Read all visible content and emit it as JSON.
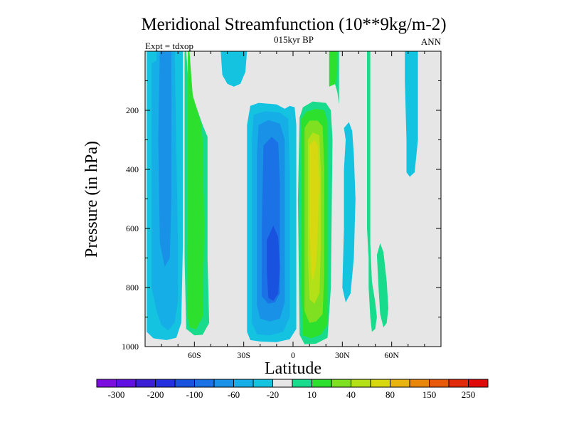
{
  "chart_data": {
    "type": "heatmap",
    "title": "Meridional Streamfunction (10**9kg/m-2)",
    "subtitle": "015kyr BP",
    "left_label": "Expt = tdxop",
    "right_label": "ANN",
    "xlabel": "Latitude",
    "ylabel": "Pressure (in hPa)",
    "xlim": [
      -90,
      90
    ],
    "ylim": [
      1000,
      0
    ],
    "x_ticks": [
      {
        "value": -60,
        "label": "60S"
      },
      {
        "value": -30,
        "label": "30S"
      },
      {
        "value": 0,
        "label": "0"
      },
      {
        "value": 30,
        "label": "30N"
      },
      {
        "value": 60,
        "label": "60N"
      }
    ],
    "y_ticks": [
      {
        "value": 200,
        "label": "200"
      },
      {
        "value": 400,
        "label": "400"
      },
      {
        "value": 600,
        "label": "600"
      },
      {
        "value": 800,
        "label": "800"
      },
      {
        "value": 1000,
        "label": "1000"
      }
    ],
    "colorbar": {
      "colors": [
        "#7a0fe0",
        "#6010e0",
        "#3a1fd6",
        "#2430e0",
        "#1a52e0",
        "#1a72e6",
        "#1891e6",
        "#16aee6",
        "#14c3e0",
        "#e6e6e6",
        "#18dc8c",
        "#2ee02e",
        "#7ee020",
        "#b4e018",
        "#d8d810",
        "#e8b410",
        "#e8860a",
        "#e85a0a",
        "#e02a0a",
        "#e00a0a"
      ],
      "labels": [
        "-300",
        "-200",
        "-100",
        "-60",
        "-20",
        "10",
        "40",
        "80",
        "150",
        "250"
      ]
    },
    "contours": [
      {
        "level": -20,
        "color": "#14c3e0",
        "points": [
          [
            -89,
            -10
          ],
          [
            -89,
            950
          ],
          [
            -85,
            972
          ],
          [
            -77,
            978
          ],
          [
            -71,
            970
          ],
          [
            -68,
            920
          ],
          [
            -67,
            650
          ],
          [
            -67,
            -10
          ]
        ]
      },
      {
        "level": -60,
        "color": "#16aee6",
        "points": [
          [
            -86,
            40
          ],
          [
            -86,
            800
          ],
          [
            -83,
            880
          ],
          [
            -80,
            928
          ],
          [
            -76,
            945
          ],
          [
            -72,
            918
          ],
          [
            -70,
            850
          ],
          [
            -70,
            650
          ],
          [
            -72,
            0
          ]
        ]
      },
      {
        "level": -60,
        "color": "#16aee6",
        "points": [
          [
            -83,
            -10
          ],
          [
            -84,
            350
          ],
          [
            -84,
            700
          ],
          [
            -81,
            780
          ],
          [
            -76,
            810
          ],
          [
            -73,
            720
          ],
          [
            -72,
            500
          ],
          [
            -72,
            -10
          ]
        ]
      },
      {
        "level": -100,
        "color": "#1891e6",
        "points": [
          [
            -81,
            -10
          ],
          [
            -82,
            300
          ],
          [
            -81,
            650
          ],
          [
            -78,
            730
          ],
          [
            -75,
            700
          ],
          [
            -74,
            500
          ],
          [
            -74,
            -10
          ]
        ]
      },
      {
        "level": -100,
        "color": "#1891e6",
        "points": [
          [
            -78,
            240
          ],
          [
            -79,
            380
          ],
          [
            -78,
            480
          ],
          [
            -76,
            440
          ],
          [
            -76,
            280
          ]
        ]
      },
      {
        "level": -20,
        "color": "#14c3e0",
        "points": [
          [
            -44,
            -10
          ],
          [
            -43,
            80
          ],
          [
            -40,
            110
          ],
          [
            -36,
            120
          ],
          [
            -32,
            110
          ],
          [
            -29,
            70
          ],
          [
            -28,
            -10
          ]
        ]
      },
      {
        "level": -20,
        "color": "#14c3e0",
        "points": [
          [
            -26,
            185
          ],
          [
            -21,
            175
          ],
          [
            -10,
            180
          ],
          [
            -5,
            195
          ],
          [
            -2,
            185
          ],
          [
            1,
            190
          ],
          [
            2,
            250
          ],
          [
            2,
            940
          ],
          [
            -2,
            975
          ],
          [
            -10,
            985
          ],
          [
            -20,
            983
          ],
          [
            -26,
            978
          ],
          [
            -28,
            950
          ],
          [
            -28,
            250
          ]
        ]
      },
      {
        "level": -60,
        "color": "#16aee6",
        "points": [
          [
            -24,
            215
          ],
          [
            -17,
            203
          ],
          [
            -8,
            208
          ],
          [
            -3,
            228
          ],
          [
            -2,
            400
          ],
          [
            -2,
            900
          ],
          [
            -6,
            950
          ],
          [
            -14,
            962
          ],
          [
            -22,
            958
          ],
          [
            -25,
            920
          ],
          [
            -25,
            300
          ]
        ]
      },
      {
        "level": -100,
        "color": "#1891e6",
        "points": [
          [
            -21,
            250
          ],
          [
            -15,
            233
          ],
          [
            -8,
            245
          ],
          [
            -5,
            300
          ],
          [
            -5,
            600
          ],
          [
            -5,
            850
          ],
          [
            -8,
            905
          ],
          [
            -14,
            915
          ],
          [
            -20,
            905
          ],
          [
            -22,
            860
          ],
          [
            -22,
            350
          ]
        ]
      },
      {
        "level": -100,
        "color": "#1a72e6",
        "points": [
          [
            -18,
            320
          ],
          [
            -13,
            290
          ],
          [
            -9,
            310
          ],
          [
            -8,
            450
          ],
          [
            -8,
            650
          ],
          [
            -8,
            820
          ],
          [
            -11,
            850
          ],
          [
            -15,
            855
          ],
          [
            -19,
            830
          ],
          [
            -19,
            600
          ]
        ]
      },
      {
        "level": -100,
        "color": "#1a52e0",
        "points": [
          [
            -16,
            640
          ],
          [
            -12,
            590
          ],
          [
            -9,
            630
          ],
          [
            -8,
            730
          ],
          [
            -9,
            820
          ],
          [
            -12,
            845
          ],
          [
            -15,
            835
          ],
          [
            -16,
            740
          ]
        ]
      },
      {
        "level": 10,
        "color": "#18dc8c",
        "points": [
          [
            -65,
            -10
          ],
          [
            -64,
            80
          ],
          [
            -60,
            170
          ],
          [
            -55,
            250
          ],
          [
            -52,
            290
          ],
          [
            -52,
            700
          ],
          [
            -51,
            920
          ],
          [
            -55,
            960
          ],
          [
            -60,
            962
          ],
          [
            -65,
            940
          ],
          [
            -66,
            700
          ],
          [
            -66,
            -10
          ]
        ]
      },
      {
        "level": 40,
        "color": "#2ee02e",
        "points": [
          [
            -63,
            -10
          ],
          [
            -61,
            150
          ],
          [
            -56,
            240
          ],
          [
            -55,
            300
          ],
          [
            -54,
            600
          ],
          [
            -55,
            900
          ],
          [
            -59,
            942
          ],
          [
            -63,
            935
          ],
          [
            -64,
            900
          ],
          [
            -64,
            450
          ],
          [
            -64,
            -10
          ]
        ]
      },
      {
        "level": -20,
        "color": "#14c3e0",
        "points": [
          [
            -44,
            -10
          ],
          [
            -44,
            -10
          ]
        ]
      },
      {
        "level": 10,
        "color": "#18dc8c",
        "points": [
          [
            4,
            225
          ],
          [
            6,
            190
          ],
          [
            12,
            170
          ],
          [
            20,
            175
          ],
          [
            23,
            200
          ],
          [
            24,
            300
          ],
          [
            23,
            800
          ],
          [
            21,
            970
          ],
          [
            14,
            990
          ],
          [
            7,
            992
          ],
          [
            4,
            960
          ],
          [
            3,
            500
          ]
        ]
      },
      {
        "level": 40,
        "color": "#2ee02e",
        "points": [
          [
            5,
            230
          ],
          [
            8,
            205
          ],
          [
            14,
            195
          ],
          [
            19,
            200
          ],
          [
            21,
            240
          ],
          [
            21,
            700
          ],
          [
            21,
            925
          ],
          [
            17,
            960
          ],
          [
            11,
            972
          ],
          [
            6,
            962
          ],
          [
            5,
            800
          ],
          [
            5,
            300
          ]
        ]
      },
      {
        "level": 80,
        "color": "#7ee020",
        "points": [
          [
            7,
            260
          ],
          [
            10,
            235
          ],
          [
            15,
            235
          ],
          [
            18,
            255
          ],
          [
            19,
            400
          ],
          [
            19,
            750
          ],
          [
            18,
            890
          ],
          [
            14,
            915
          ],
          [
            10,
            920
          ],
          [
            7,
            880
          ],
          [
            7,
            500
          ]
        ]
      },
      {
        "level": 150,
        "color": "#b4e018",
        "points": [
          [
            9,
            300
          ],
          [
            12,
            275
          ],
          [
            16,
            285
          ],
          [
            17,
            420
          ],
          [
            17,
            650
          ],
          [
            16,
            820
          ],
          [
            13,
            855
          ],
          [
            10,
            840
          ],
          [
            9,
            700
          ]
        ]
      },
      {
        "level": 150,
        "color": "#d8d810",
        "points": [
          [
            10,
            320
          ],
          [
            13,
            300
          ],
          [
            15,
            320
          ],
          [
            16,
            450
          ],
          [
            15,
            600
          ],
          [
            14,
            720
          ],
          [
            12,
            780
          ],
          [
            11,
            740
          ],
          [
            10,
            600
          ]
        ]
      },
      {
        "level": 10,
        "color": "#18dc8c",
        "points": [
          [
            23,
            -10
          ],
          [
            24,
            50
          ],
          [
            25,
            100
          ],
          [
            27,
            140
          ],
          [
            28,
            180
          ],
          [
            28,
            -10
          ]
        ]
      },
      {
        "level": 40,
        "color": "#2ee02e",
        "points": [
          [
            22,
            -10
          ],
          [
            22,
            80
          ],
          [
            22,
            120
          ],
          [
            26,
            110
          ],
          [
            27,
            40
          ],
          [
            27,
            -10
          ]
        ]
      },
      {
        "level": -20,
        "color": "#14c3e0",
        "points": [
          [
            32,
            300
          ],
          [
            31,
            260
          ],
          [
            34,
            240
          ],
          [
            36,
            270
          ],
          [
            37,
            350
          ],
          [
            38,
            500
          ],
          [
            37,
            700
          ],
          [
            35,
            820
          ],
          [
            32,
            850
          ],
          [
            30,
            800
          ],
          [
            31,
            600
          ],
          [
            31,
            400
          ]
        ]
      },
      {
        "level": 10,
        "color": "#18dc8c",
        "points": [
          [
            47,
            -10
          ],
          [
            47,
            100
          ],
          [
            47,
            300
          ],
          [
            47,
            650
          ],
          [
            48,
            780
          ],
          [
            50,
            850
          ],
          [
            51,
            900
          ],
          [
            50,
            940
          ],
          [
            48,
            950
          ],
          [
            47,
            900
          ],
          [
            46,
            800
          ],
          [
            46,
            700
          ],
          [
            45,
            600
          ],
          [
            45,
            400
          ],
          [
            45,
            200
          ],
          [
            45,
            -10
          ]
        ]
      },
      {
        "level": 10,
        "color": "#18dc8c",
        "points": [
          [
            51,
            690
          ],
          [
            53,
            650
          ],
          [
            55,
            680
          ],
          [
            57,
            780
          ],
          [
            58,
            870
          ],
          [
            57,
            920
          ],
          [
            55,
            935
          ],
          [
            53,
            890
          ],
          [
            52,
            800
          ]
        ]
      },
      {
        "level": -20,
        "color": "#14c3e0",
        "points": [
          [
            68,
            -10
          ],
          [
            68,
            100
          ],
          [
            69,
            300
          ],
          [
            69,
            410
          ],
          [
            71,
            425
          ],
          [
            74,
            410
          ],
          [
            76,
            300
          ],
          [
            76,
            100
          ],
          [
            76,
            -10
          ]
        ]
      }
    ]
  }
}
